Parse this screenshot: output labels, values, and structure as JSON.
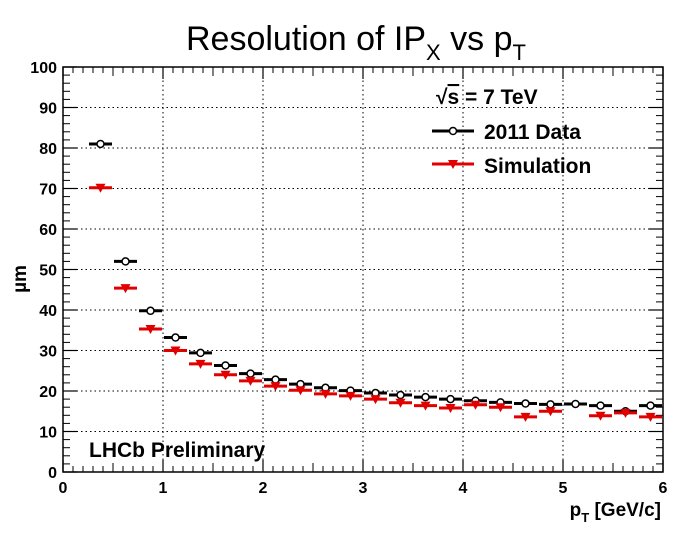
{
  "chart_data": {
    "type": "scatter",
    "title": {
      "prefix": "Resolution of IP",
      "prefix_sub": "X",
      "middle": " vs p",
      "middle_sub": "T"
    },
    "xlabel": {
      "main": "p",
      "sub": "T",
      "rest": " [GeV/c]"
    },
    "ylabel": "µm",
    "xlim": [
      0,
      6
    ],
    "ylim": [
      0,
      100
    ],
    "x_ticks": [
      "0",
      "1",
      "2",
      "3",
      "4",
      "5",
      "6"
    ],
    "y_ticks": [
      "0",
      "10",
      "20",
      "30",
      "40",
      "50",
      "60",
      "70",
      "80",
      "90",
      "100"
    ],
    "grid": true,
    "legend_position": "top-right",
    "legend_header": {
      "sqrt": "√",
      "s": "s",
      "rest": " = 7 TeV"
    },
    "annotation": "LHCb Preliminary",
    "series": [
      {
        "name": "2011 Data",
        "color": "#000000",
        "marker": "open-circle",
        "points": [
          {
            "x0": 0.25,
            "x1": 0.5,
            "y": 81.0
          },
          {
            "x0": 0.5,
            "x1": 0.75,
            "y": 52.0
          },
          {
            "x0": 0.75,
            "x1": 1.0,
            "y": 39.8
          },
          {
            "x0": 1.0,
            "x1": 1.25,
            "y": 33.2
          },
          {
            "x0": 1.25,
            "x1": 1.5,
            "y": 29.4
          },
          {
            "x0": 1.5,
            "x1": 1.75,
            "y": 26.3
          },
          {
            "x0": 1.75,
            "x1": 2.0,
            "y": 24.3
          },
          {
            "x0": 2.0,
            "x1": 2.25,
            "y": 22.8
          },
          {
            "x0": 2.25,
            "x1": 2.5,
            "y": 21.7
          },
          {
            "x0": 2.5,
            "x1": 2.75,
            "y": 20.8
          },
          {
            "x0": 2.75,
            "x1": 3.0,
            "y": 20.1
          },
          {
            "x0": 3.0,
            "x1": 3.25,
            "y": 19.5
          },
          {
            "x0": 3.25,
            "x1": 3.5,
            "y": 19.0
          },
          {
            "x0": 3.5,
            "x1": 3.75,
            "y": 18.5
          },
          {
            "x0": 3.75,
            "x1": 4.0,
            "y": 18.0
          },
          {
            "x0": 4.0,
            "x1": 4.25,
            "y": 17.6
          },
          {
            "x0": 4.25,
            "x1": 4.5,
            "y": 17.2
          },
          {
            "x0": 4.5,
            "x1": 4.75,
            "y": 16.9
          },
          {
            "x0": 4.75,
            "x1": 5.0,
            "y": 16.7
          },
          {
            "x0": 5.0,
            "x1": 5.25,
            "y": 16.8
          },
          {
            "x0": 5.25,
            "x1": 5.5,
            "y": 16.4
          },
          {
            "x0": 5.5,
            "x1": 5.75,
            "y": 15.0
          },
          {
            "x0": 5.75,
            "x1": 6.0,
            "y": 16.4
          }
        ]
      },
      {
        "name": "Simulation",
        "color": "#e00000",
        "marker": "down-triangle",
        "points": [
          {
            "x0": 0.25,
            "x1": 0.5,
            "y": 70.2
          },
          {
            "x0": 0.5,
            "x1": 0.75,
            "y": 45.4
          },
          {
            "x0": 0.75,
            "x1": 1.0,
            "y": 35.3
          },
          {
            "x0": 1.0,
            "x1": 1.25,
            "y": 30.0
          },
          {
            "x0": 1.25,
            "x1": 1.5,
            "y": 26.7
          },
          {
            "x0": 1.5,
            "x1": 1.75,
            "y": 24.0
          },
          {
            "x0": 1.75,
            "x1": 2.0,
            "y": 22.5
          },
          {
            "x0": 2.0,
            "x1": 2.25,
            "y": 21.2
          },
          {
            "x0": 2.25,
            "x1": 2.5,
            "y": 20.2
          },
          {
            "x0": 2.5,
            "x1": 2.75,
            "y": 19.3
          },
          {
            "x0": 2.75,
            "x1": 3.0,
            "y": 18.8
          },
          {
            "x0": 3.0,
            "x1": 3.25,
            "y": 18.0
          },
          {
            "x0": 3.25,
            "x1": 3.5,
            "y": 17.1
          },
          {
            "x0": 3.5,
            "x1": 3.75,
            "y": 16.4
          },
          {
            "x0": 3.75,
            "x1": 4.0,
            "y": 15.8
          },
          {
            "x0": 4.0,
            "x1": 4.25,
            "y": 16.6
          },
          {
            "x0": 4.25,
            "x1": 4.5,
            "y": 16.0
          },
          {
            "x0": 4.5,
            "x1": 4.75,
            "y": 13.6
          },
          {
            "x0": 4.75,
            "x1": 5.0,
            "y": 15.0
          },
          {
            "x0": 5.25,
            "x1": 5.5,
            "y": 13.9
          },
          {
            "x0": 5.5,
            "x1": 5.75,
            "y": 14.6
          },
          {
            "x0": 5.75,
            "x1": 6.0,
            "y": 13.6
          }
        ]
      }
    ]
  }
}
